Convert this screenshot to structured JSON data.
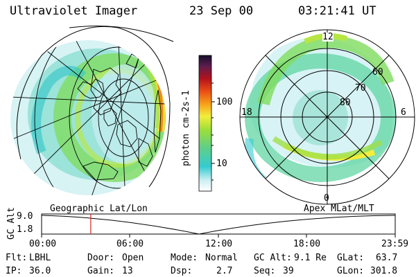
{
  "header": {
    "title": "Ultraviolet Imager",
    "date": "23 Sep 00",
    "time": "03:21:41 UT"
  },
  "colorbar": {
    "unit_label": "photon cm-2s-1",
    "ticks": [
      "100",
      "10"
    ]
  },
  "left_panel": {
    "caption": "Geographic Lat/Lon"
  },
  "right_panel": {
    "caption": "Apex MLat/MLT",
    "mlt_labels": {
      "top": "12",
      "left": "18",
      "right": "6",
      "bottom": "0"
    },
    "mlat_labels": [
      "60",
      "70",
      "80"
    ]
  },
  "altitude_plot": {
    "ylabel": "GC Alt",
    "y_top": "9.0",
    "y_bottom": "1.8",
    "time_ticks": [
      "00:00",
      "06:00",
      "12:00",
      "18:00",
      "23:59"
    ],
    "current_time_fraction": 0.139
  },
  "info": {
    "filter_label": "Flt:",
    "filter_value": "LBHL",
    "ip_label": "IP:",
    "ip_value": "36.0",
    "door_label": "Door:",
    "door_value": "Open",
    "gain_label": "Gain:",
    "gain_value": "13",
    "mode_label": "Mode:",
    "mode_value": "Normal",
    "dsp_label": "Dsp:",
    "dsp_value": "2.7",
    "gcalt_label": "GC Alt:",
    "gcalt_value": "9.1 Re",
    "seq_label": "Seq:",
    "seq_value": "39",
    "glat_label": "GLat:",
    "glat_value": "63.7",
    "glon_label": "GLon:",
    "glon_value": "301.8"
  },
  "colors": {
    "marker": "#e02020",
    "grid": "#000000"
  }
}
